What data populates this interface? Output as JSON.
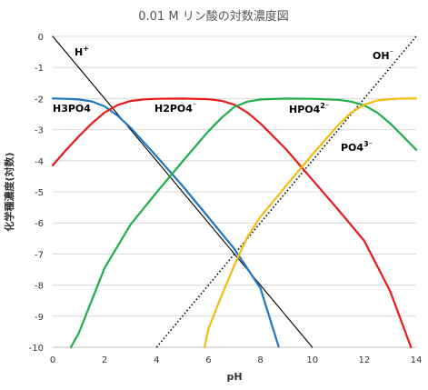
{
  "chart_data": {
    "type": "line",
    "title": "0.01 M リン酸の対数濃度図",
    "xlabel": "pH",
    "ylabel": "化学種濃度(対数)",
    "xlim": [
      0,
      14
    ],
    "ylim": [
      -10,
      0
    ],
    "xticks": [
      "0",
      "2",
      "4",
      "6",
      "8",
      "10",
      "12",
      "14"
    ],
    "yticks": [
      "0",
      "-1",
      "-2",
      "-3",
      "-4",
      "-5",
      "-6",
      "-7",
      "-8",
      "-9",
      "-10"
    ],
    "grid": "horizontal",
    "series": [
      {
        "name": "H+",
        "label_text": "H",
        "label_sup": "+",
        "color": "#000000",
        "style": "solid",
        "x": [
          0,
          10
        ],
        "y": [
          0,
          -10
        ]
      },
      {
        "name": "OH⁻",
        "label_text": "OH",
        "label_sup": "⁻",
        "color": "#000000",
        "style": "dotted",
        "x": [
          4,
          14
        ],
        "y": [
          -10,
          0
        ]
      },
      {
        "name": "H3PO4",
        "label_text": "H3PO4",
        "label_sup": "",
        "color": "#1f77c4",
        "style": "solid",
        "x": [
          0,
          0.5,
          1,
          1.5,
          2,
          2.5,
          3,
          3.5,
          4,
          5,
          6,
          7,
          8,
          8.7
        ],
        "y": [
          -2.0,
          -2.01,
          -2.03,
          -2.09,
          -2.25,
          -2.55,
          -2.94,
          -3.4,
          -3.86,
          -4.81,
          -5.82,
          -6.84,
          -8.1,
          -9.98
        ]
      },
      {
        "name": "H2PO4⁻",
        "label_text": "H2PO4",
        "label_sup": "⁻",
        "color": "#e8191b",
        "style": "solid",
        "x": [
          0,
          0.5,
          1,
          1.5,
          2,
          2.5,
          3,
          3.5,
          4,
          5,
          6,
          6.5,
          7,
          7.5,
          8,
          9,
          10,
          11,
          12,
          13,
          13.8
        ],
        "y": [
          -4.15,
          -3.67,
          -3.22,
          -2.8,
          -2.45,
          -2.21,
          -2.08,
          -2.03,
          -2.01,
          -2.0,
          -2.02,
          -2.07,
          -2.2,
          -2.45,
          -2.8,
          -3.64,
          -4.61,
          -5.58,
          -6.58,
          -8.2,
          -10.0
        ]
      },
      {
        "name": "HPO4²⁻",
        "label_text": "HPO4",
        "label_sup": "2⁻",
        "color": "#1fae4a",
        "style": "solid",
        "x": [
          0.7,
          1,
          2,
          3,
          4,
          5,
          6,
          6.5,
          7,
          7.5,
          8,
          9,
          10,
          11,
          11.5,
          12,
          12.5,
          13,
          13.5,
          14
        ],
        "y": [
          -10.0,
          -9.55,
          -7.45,
          -6.05,
          -5.02,
          -4.02,
          -3.05,
          -2.62,
          -2.27,
          -2.1,
          -2.03,
          -2.0,
          -2.01,
          -2.04,
          -2.1,
          -2.22,
          -2.45,
          -2.8,
          -3.22,
          -3.65
        ]
      },
      {
        "name": "PO4³⁻",
        "label_text": "PO4",
        "label_sup": "3⁻",
        "color": "#f5bc10",
        "style": "solid",
        "x": [
          5.85,
          6,
          6.5,
          7,
          7.5,
          8,
          9,
          10,
          11,
          11.5,
          12,
          12.5,
          13,
          13.5,
          14
        ],
        "y": [
          -10.0,
          -9.4,
          -8.35,
          -7.35,
          -6.45,
          -5.8,
          -4.8,
          -3.8,
          -2.85,
          -2.45,
          -2.2,
          -2.06,
          -2.02,
          -2.0,
          -2.0
        ]
      }
    ]
  }
}
